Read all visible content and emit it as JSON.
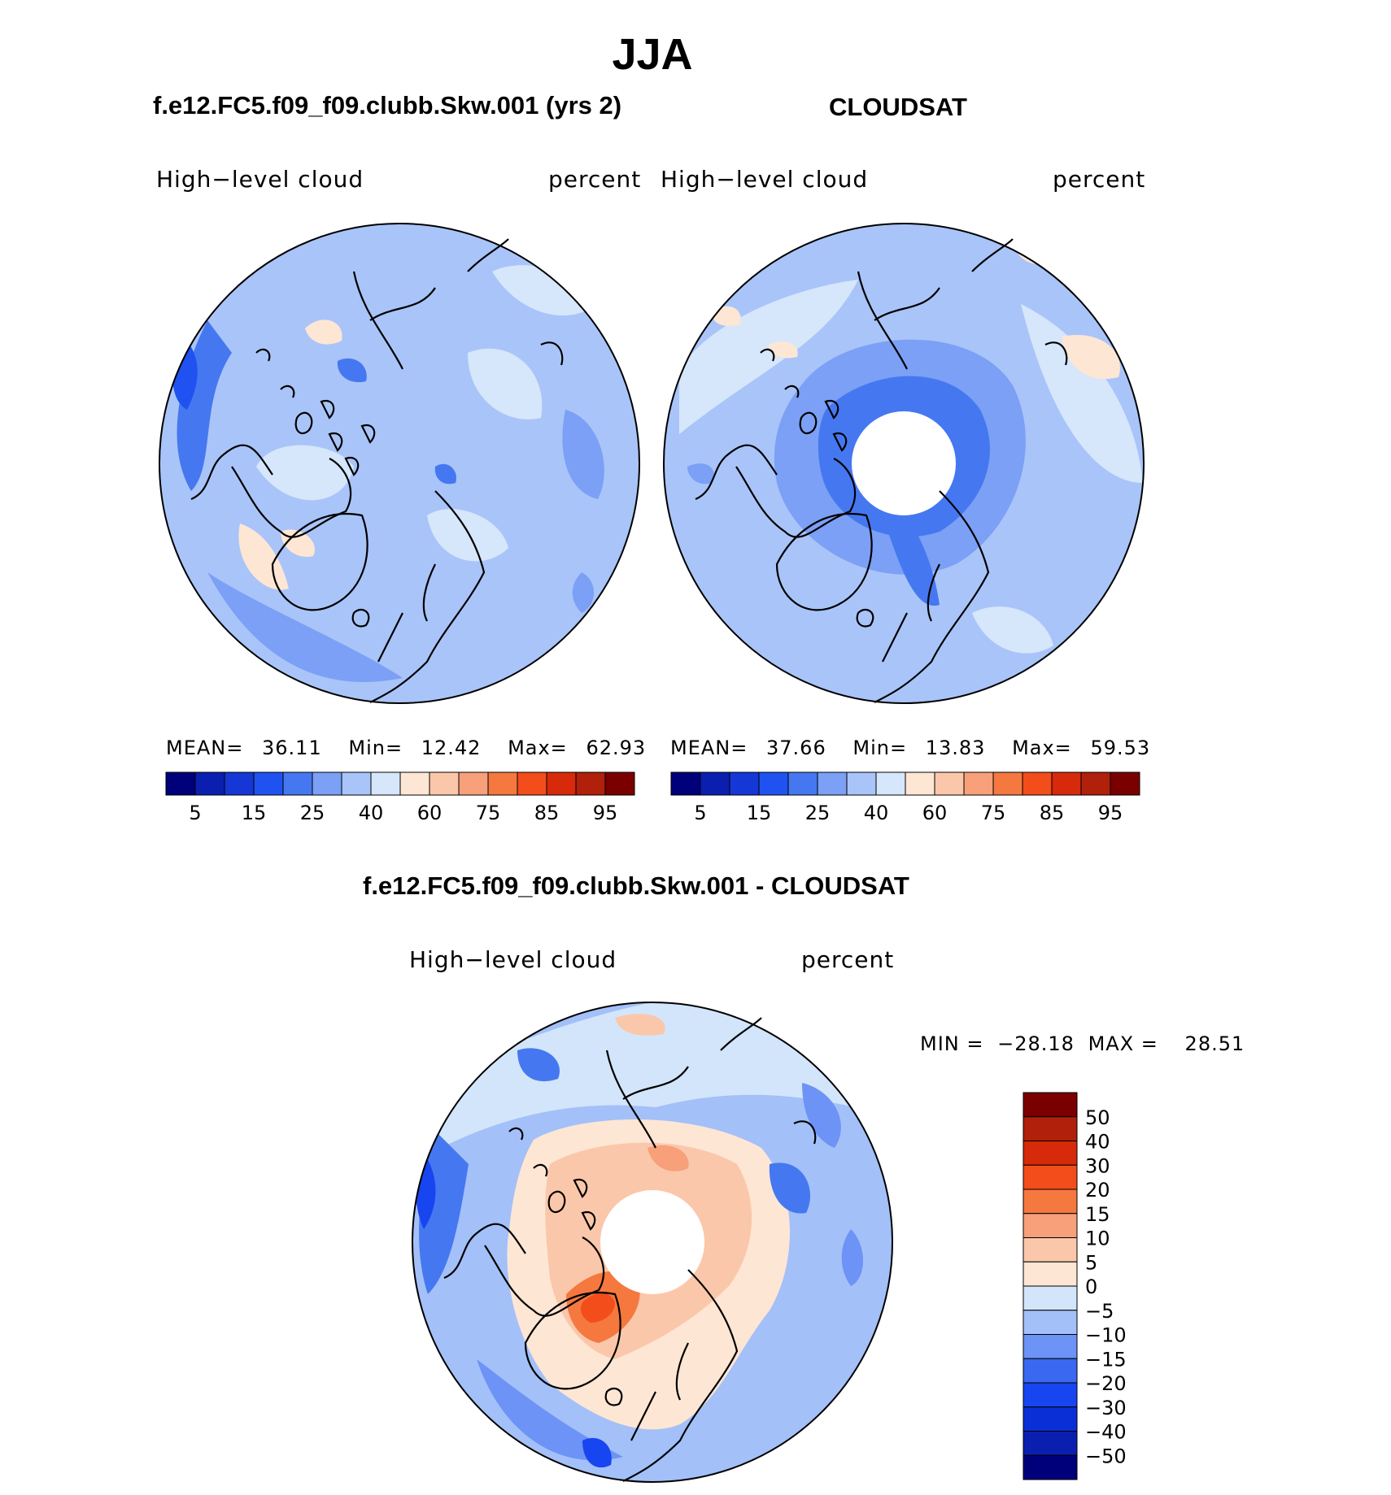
{
  "title": "JJA",
  "palette": {
    "sequential": [
      "#00007a",
      "#0a1fb0",
      "#1437d6",
      "#1f52f0",
      "#4578f0",
      "#7ba0f5",
      "#a9c4f8",
      "#d6e6fb",
      "#fde6d4",
      "#fbc7aa",
      "#f7a07a",
      "#f5783f",
      "#f24d1a",
      "#d62a0a",
      "#b0200a",
      "#7a0000"
    ],
    "diverging": [
      "#00007a",
      "#0a1fb0",
      "#0b2fd6",
      "#1745f0",
      "#3a68f0",
      "#6c93f5",
      "#a3c0f8",
      "#d3e5fb",
      "#fde6d4",
      "#fbc7aa",
      "#f7a07a",
      "#f5783f",
      "#f24d1a",
      "#d62a0a",
      "#b0200a",
      "#7a0000"
    ],
    "coast": "#000000"
  },
  "panels": [
    {
      "case_title": "f.e12.FC5.f09_f09.clubb.Skw.001 (yrs 2)",
      "variable": "High−level cloud",
      "units": "percent",
      "stats": {
        "mean_label": "MEAN=",
        "mean": "36.11",
        "min_label": "Min=",
        "min": "12.42",
        "max_label": "Max=",
        "max": "62.93"
      },
      "colorbar_labels": [
        "5",
        "15",
        "25",
        "40",
        "60",
        "75",
        "85",
        "95"
      ],
      "pole_hole": false
    },
    {
      "case_title": "CLOUDSAT",
      "variable": "High−level cloud",
      "units": "percent",
      "stats": {
        "mean_label": "MEAN=",
        "mean": "37.66",
        "min_label": "Min=",
        "min": "13.83",
        "max_label": "Max=",
        "max": "59.53"
      },
      "colorbar_labels": [
        "5",
        "15",
        "25",
        "40",
        "60",
        "75",
        "85",
        "95"
      ],
      "pole_hole": true
    }
  ],
  "diff": {
    "title": "f.e12.FC5.f09_f09.clubb.Skw.001 - CLOUDSAT",
    "variable": "High−level cloud",
    "units": "percent",
    "min_label": "MIN =",
    "min": "−28.18",
    "max_label": "MAX =",
    "max": "28.51",
    "colorbar_labels": [
      "50",
      "40",
      "30",
      "20",
      "15",
      "10",
      "5",
      "0",
      "−5",
      "−10",
      "−15",
      "−20",
      "−30",
      "−40",
      "−50"
    ]
  }
}
